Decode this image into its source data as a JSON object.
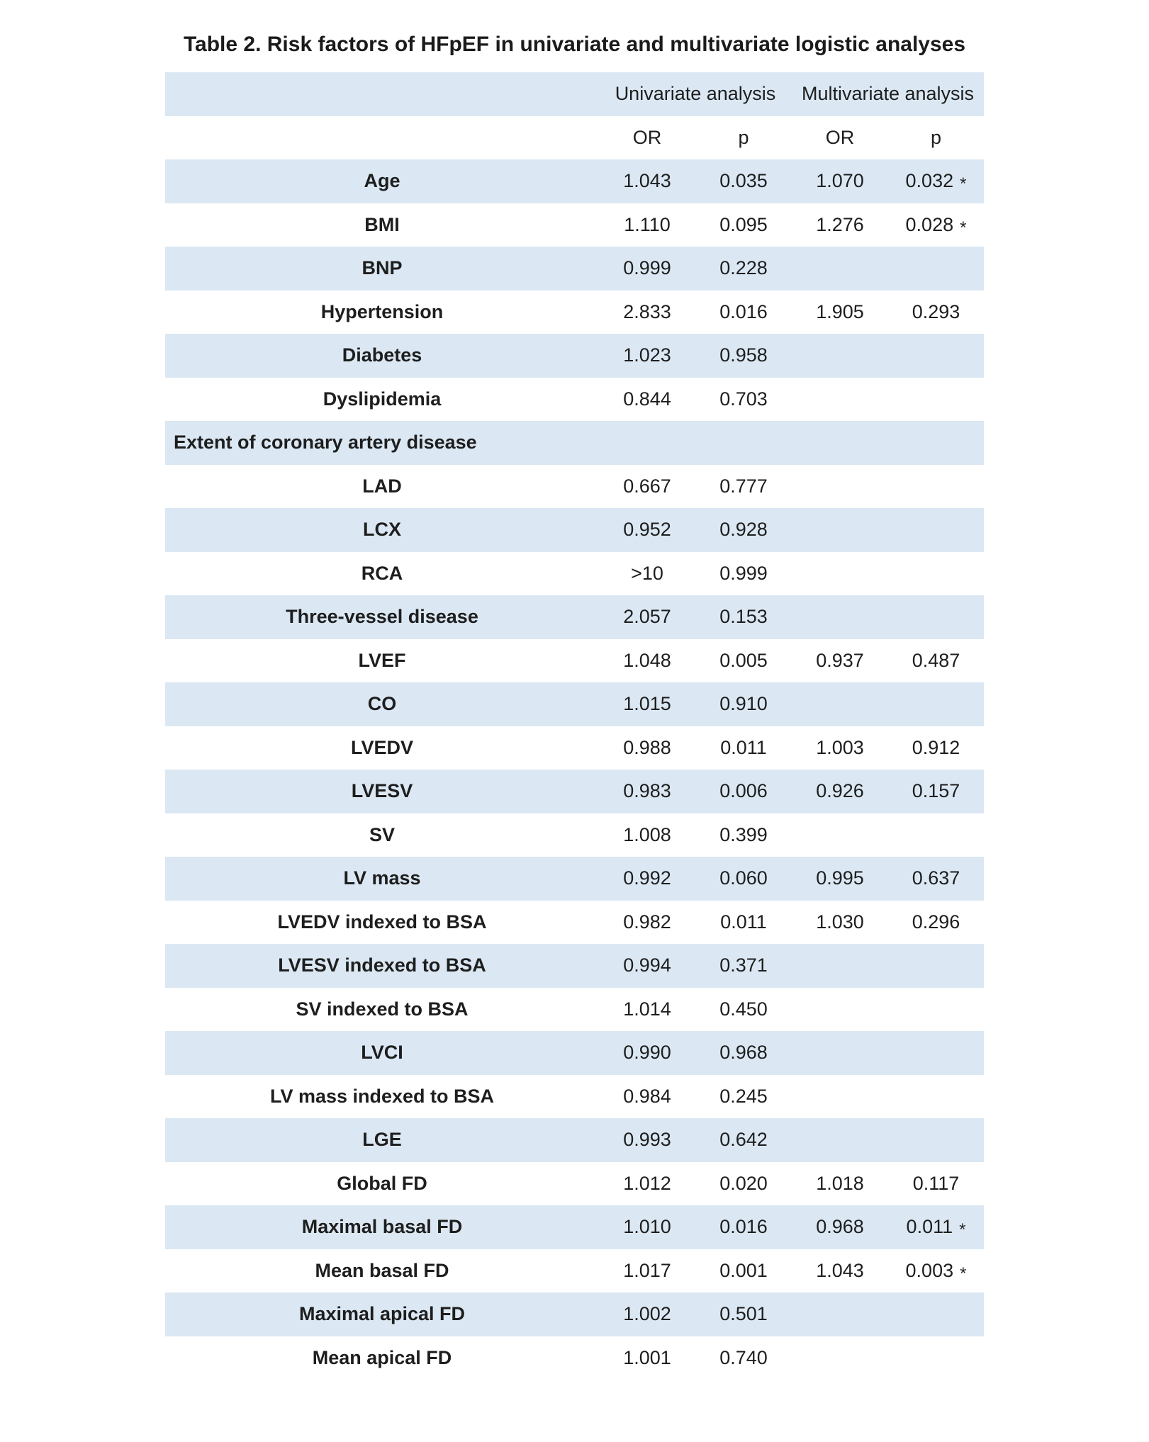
{
  "title": "Table 2. Risk factors of HFpEF in univariate and multivariate logistic analyses",
  "colors": {
    "row_stripe": "#dbe8f4",
    "text": "#1e1e1e",
    "background": "#ffffff"
  },
  "table": {
    "group_headers": [
      "Univariate analysis",
      "Multivariate analysis"
    ],
    "sub_headers": [
      "OR",
      "p",
      "OR",
      "p"
    ],
    "sig_marker": "*",
    "rows": [
      {
        "label": "Age",
        "or1": "1.043",
        "p1": "0.035",
        "or2": "1.070",
        "p2": "0.032",
        "sig": true
      },
      {
        "label": "BMI",
        "or1": "1.110",
        "p1": "0.095",
        "or2": "1.276",
        "p2": "0.028",
        "sig": true
      },
      {
        "label": "BNP",
        "or1": "0.999",
        "p1": "0.228",
        "or2": "",
        "p2": "",
        "sig": false
      },
      {
        "label": "Hypertension",
        "or1": "2.833",
        "p1": "0.016",
        "or2": "1.905",
        "p2": "0.293",
        "sig": false
      },
      {
        "label": "Diabetes",
        "or1": "1.023",
        "p1": "0.958",
        "or2": "",
        "p2": "",
        "sig": false
      },
      {
        "label": "Dyslipidemia",
        "or1": "0.844",
        "p1": "0.703",
        "or2": "",
        "p2": "",
        "sig": false
      },
      {
        "label": "Extent of coronary artery disease",
        "or1": "",
        "p1": "",
        "or2": "",
        "p2": "",
        "sig": false,
        "section": true
      },
      {
        "label": "LAD",
        "or1": "0.667",
        "p1": "0.777",
        "or2": "",
        "p2": "",
        "sig": false
      },
      {
        "label": "LCX",
        "or1": "0.952",
        "p1": "0.928",
        "or2": "",
        "p2": "",
        "sig": false
      },
      {
        "label": "RCA",
        "or1": ">10",
        "p1": "0.999",
        "or2": "",
        "p2": "",
        "sig": false
      },
      {
        "label": "Three-vessel disease",
        "or1": "2.057",
        "p1": "0.153",
        "or2": "",
        "p2": "",
        "sig": false
      },
      {
        "label": "LVEF",
        "or1": "1.048",
        "p1": "0.005",
        "or2": "0.937",
        "p2": "0.487",
        "sig": false
      },
      {
        "label": "CO",
        "or1": "1.015",
        "p1": "0.910",
        "or2": "",
        "p2": "",
        "sig": false
      },
      {
        "label": "LVEDV",
        "or1": "0.988",
        "p1": "0.011",
        "or2": "1.003",
        "p2": "0.912",
        "sig": false
      },
      {
        "label": "LVESV",
        "or1": "0.983",
        "p1": "0.006",
        "or2": "0.926",
        "p2": "0.157",
        "sig": false
      },
      {
        "label": "SV",
        "or1": "1.008",
        "p1": "0.399",
        "or2": "",
        "p2": "",
        "sig": false
      },
      {
        "label": "LV mass",
        "or1": "0.992",
        "p1": "0.060",
        "or2": "0.995",
        "p2": "0.637",
        "sig": false
      },
      {
        "label": "LVEDV indexed to BSA",
        "or1": "0.982",
        "p1": "0.011",
        "or2": "1.030",
        "p2": "0.296",
        "sig": false
      },
      {
        "label": "LVESV indexed to BSA",
        "or1": "0.994",
        "p1": "0.371",
        "or2": "",
        "p2": "",
        "sig": false
      },
      {
        "label": "SV indexed to BSA",
        "or1": "1.014",
        "p1": "0.450",
        "or2": "",
        "p2": "",
        "sig": false
      },
      {
        "label": "LVCI",
        "or1": "0.990",
        "p1": "0.968",
        "or2": "",
        "p2": "",
        "sig": false
      },
      {
        "label": "LV mass indexed to BSA",
        "or1": "0.984",
        "p1": "0.245",
        "or2": "",
        "p2": "",
        "sig": false
      },
      {
        "label": "LGE",
        "or1": "0.993",
        "p1": "0.642",
        "or2": "",
        "p2": "",
        "sig": false
      },
      {
        "label": "Global FD",
        "or1": "1.012",
        "p1": "0.020",
        "or2": "1.018",
        "p2": "0.117",
        "sig": false
      },
      {
        "label": "Maximal basal FD",
        "or1": "1.010",
        "p1": "0.016",
        "or2": "0.968",
        "p2": "0.011",
        "sig": true
      },
      {
        "label": "Mean basal FD",
        "or1": "1.017",
        "p1": "0.001",
        "or2": "1.043",
        "p2": "0.003",
        "sig": true
      },
      {
        "label": "Maximal apical FD",
        "or1": "1.002",
        "p1": "0.501",
        "or2": "",
        "p2": "",
        "sig": false
      },
      {
        "label": "Mean apical FD",
        "or1": "1.001",
        "p1": "0.740",
        "or2": "",
        "p2": "",
        "sig": false
      }
    ]
  }
}
